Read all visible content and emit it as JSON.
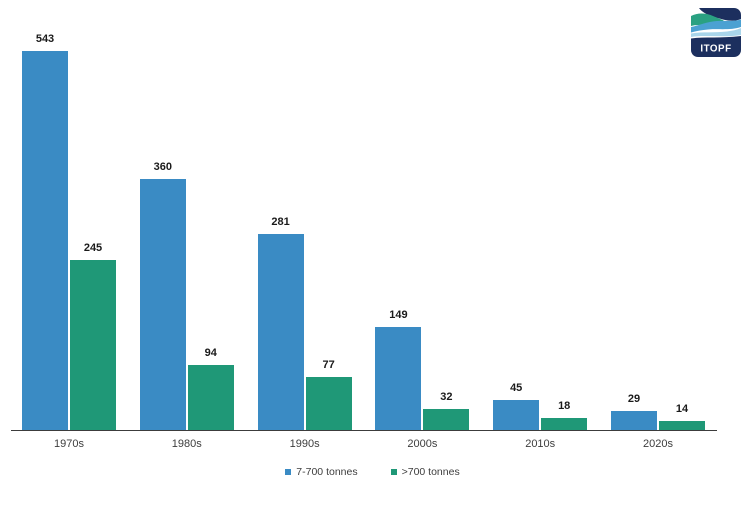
{
  "logo": {
    "text": "ITOPF",
    "colors": {
      "navy": "#1c2f5e",
      "wave_green": "#2aa182",
      "wave_blue": "#4ba1d2",
      "wave_light_blue": "#a9d5ea"
    }
  },
  "chart_data": {
    "type": "bar",
    "title": "",
    "xlabel": "",
    "ylabel": "",
    "categories": [
      "1970s",
      "1980s",
      "1990s",
      "2000s",
      "2010s",
      "2020s"
    ],
    "series": [
      {
        "name": "7-700 tonnes",
        "color": "#3a8bc4",
        "values": [
          543,
          360,
          281,
          149,
          45,
          29
        ]
      },
      {
        "name": ">700 tonnes",
        "color": "#1f9877",
        "values": [
          245,
          94,
          77,
          32,
          18,
          14
        ]
      }
    ],
    "ylim": [
      0,
      560
    ],
    "grid": false,
    "legend_position": "bottom",
    "value_labels_shown": true,
    "axis_color": "#3c3c3c",
    "value_label_color": "#1a1a1a",
    "category_label_color": "#3d3d3d"
  }
}
